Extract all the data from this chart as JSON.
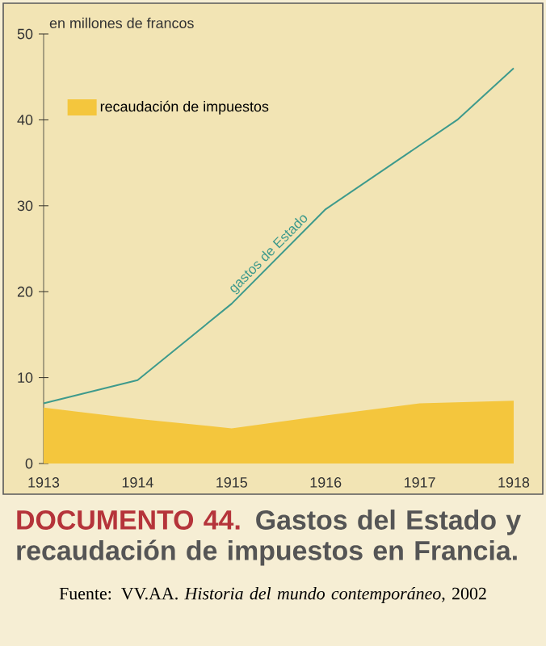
{
  "chart_data": {
    "type": "line",
    "title": "DOCUMENTO 44.",
    "subtitle": "Gastos del Estado y recaudación de impuestos en Francia.",
    "ylabel": "en millones de francos",
    "annotations": [
      "Fuente: VV.AA. *Historia del mundo contemporáneo*, 2002"
    ],
    "xlim": [
      1913,
      1918
    ],
    "xticks": [
      1913,
      1914,
      1915,
      1916,
      1917,
      1918
    ],
    "ylim": [
      0,
      50
    ],
    "yticks": [
      0,
      10,
      20,
      30,
      40,
      50
    ],
    "legend": "top left",
    "grid": false,
    "marker": "none",
    "line_style": "solid",
    "series": [
      {
        "name": "recaudación de impuestos",
        "type": "area",
        "color": "#f4c63d",
        "x": [
          1913,
          1914,
          1915,
          1916,
          1917,
          1918
        ],
        "values": [
          6.5,
          5.2,
          4.1,
          5.6,
          7.0,
          7.3
        ]
      },
      {
        "name": "gastos de Estado",
        "color": "#3e9a8c",
        "x": [
          1913,
          1914,
          1915,
          1916,
          1917.4,
          1918
        ],
        "values": [
          7,
          9.7,
          18.6,
          29.6,
          40,
          46
        ]
      }
    ]
  }
}
